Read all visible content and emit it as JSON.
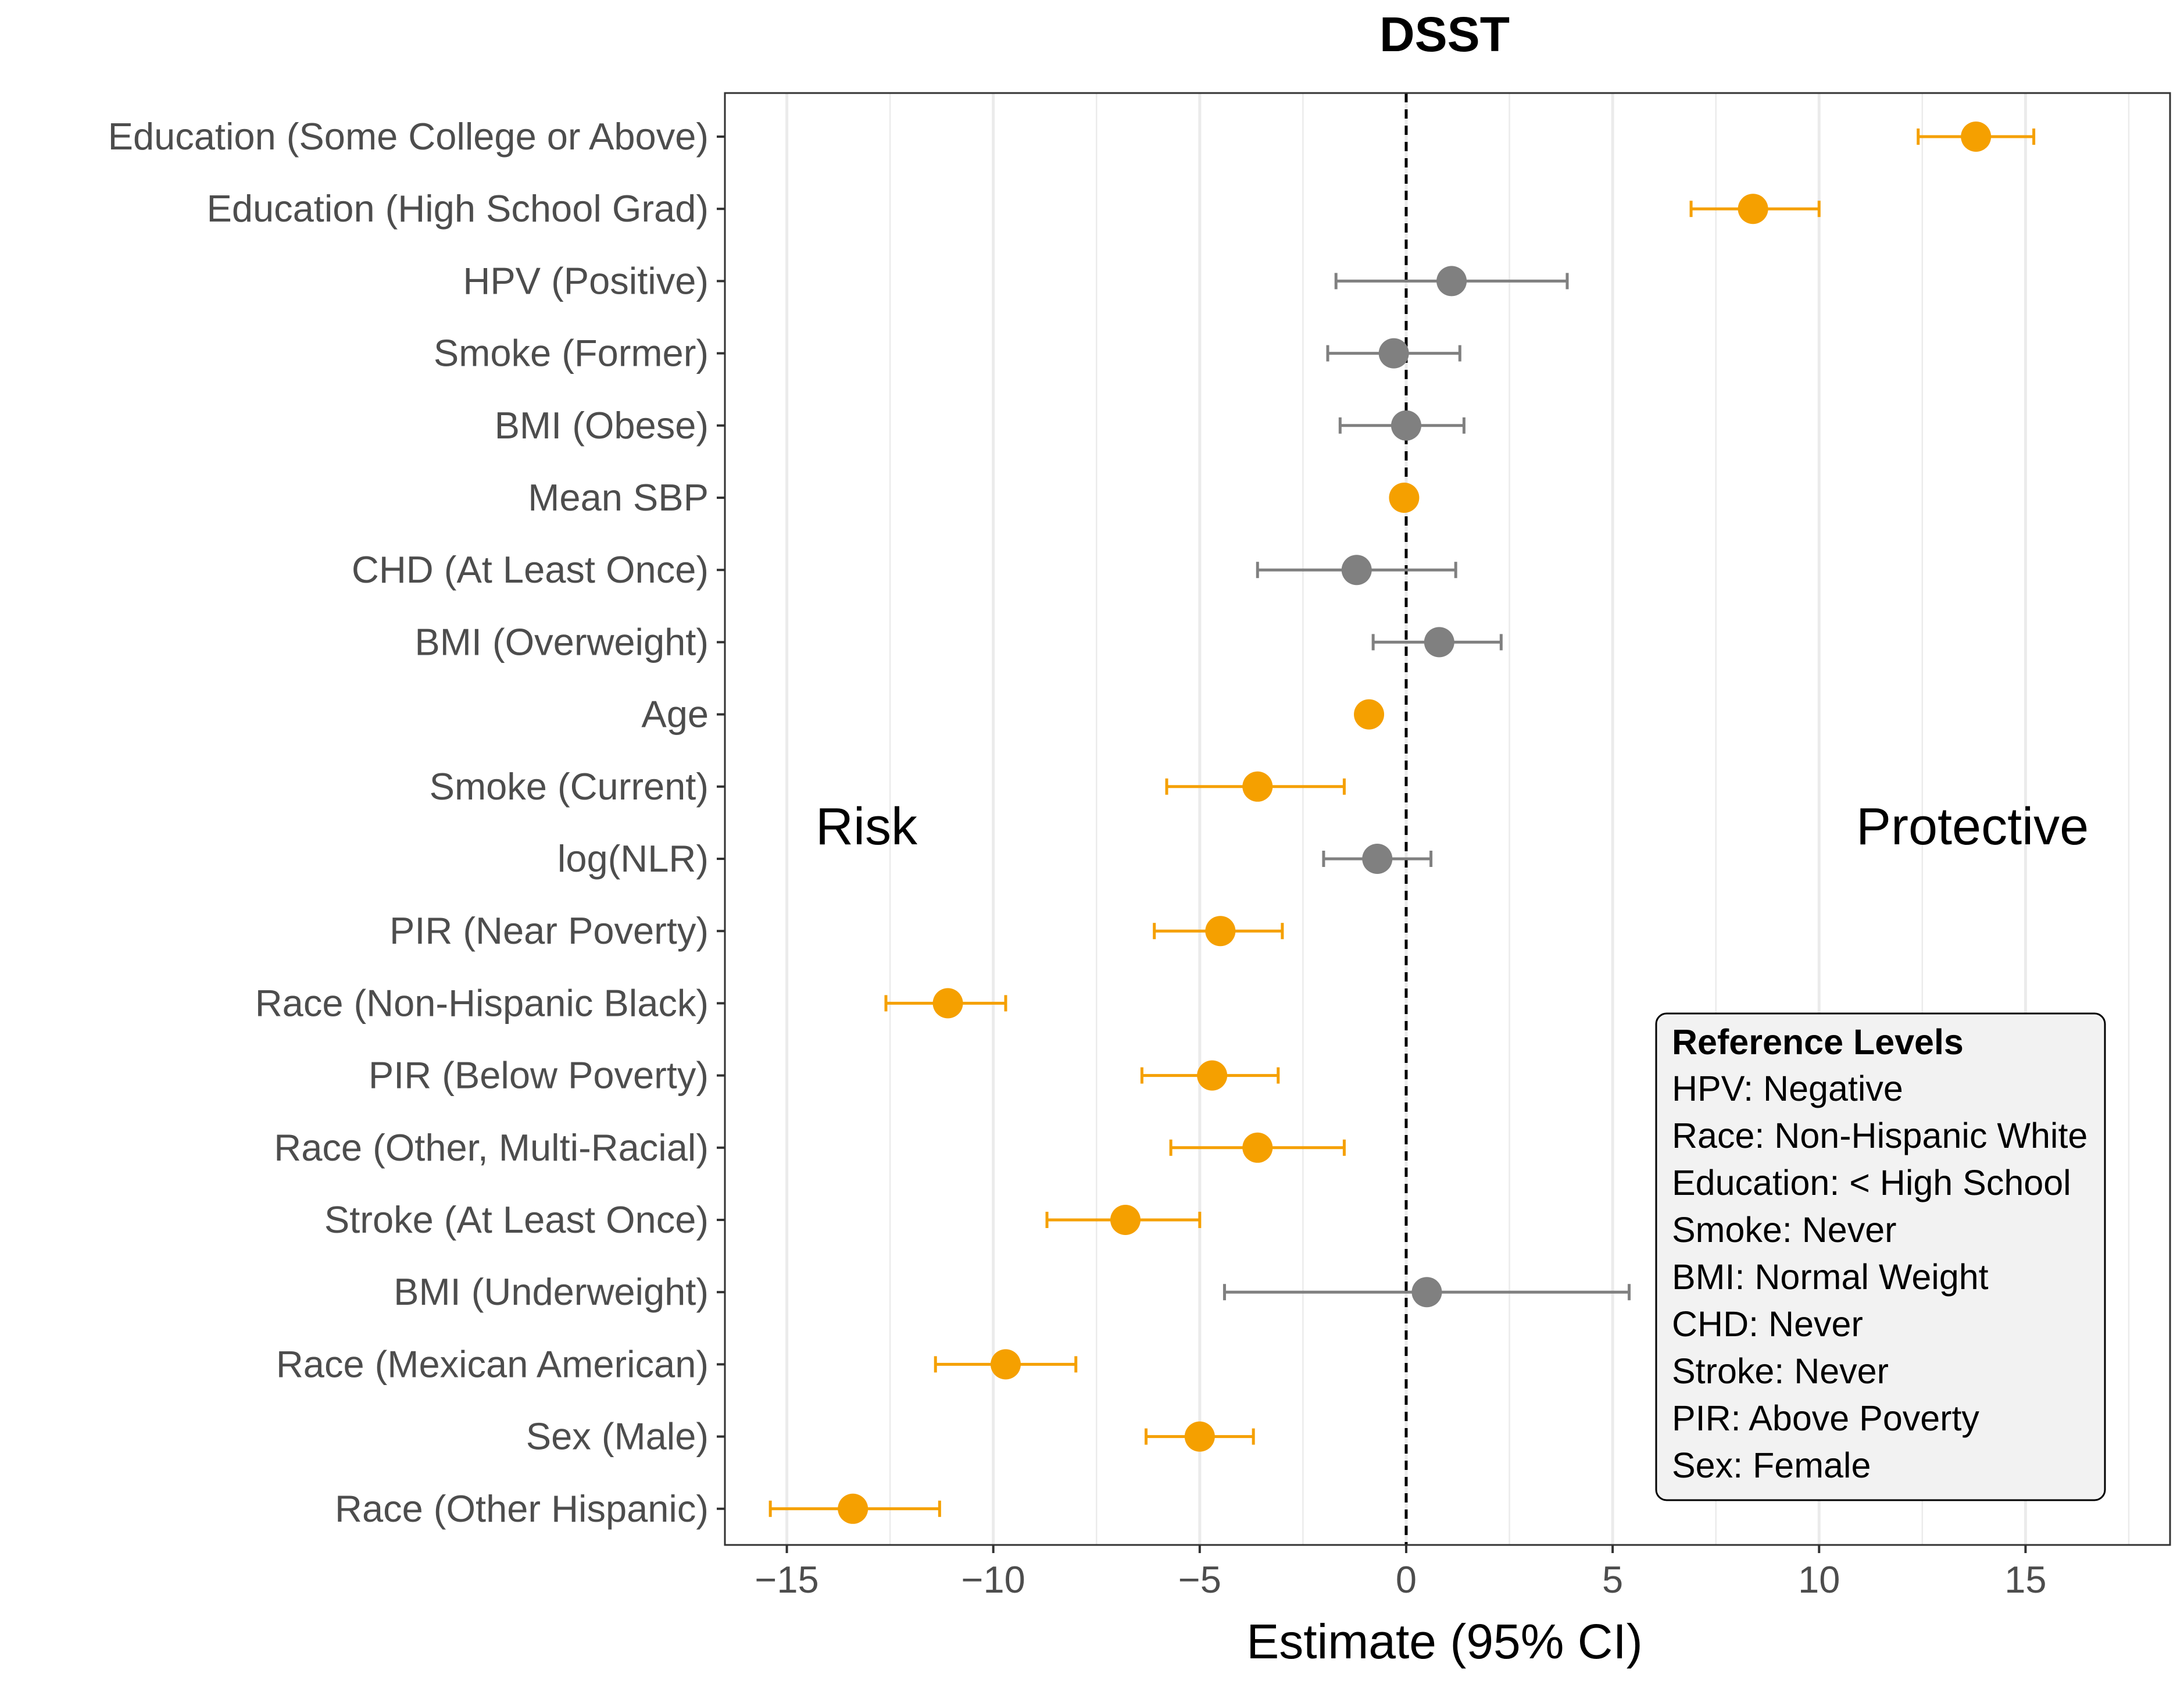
{
  "chart_data": {
    "type": "forest",
    "title": "DSST",
    "xlabel": "Estimate (95% CI)",
    "ylabel": "",
    "xlim": [
      -16.5,
      18.5
    ],
    "xticks": [
      -15,
      -10,
      -5,
      0,
      5,
      10,
      15
    ],
    "xtick_labels": [
      "−15",
      "−10",
      "−5",
      "0",
      "5",
      "10",
      "15"
    ],
    "reference_line": 0,
    "grid": "vertical",
    "colors": {
      "significant": "#F5A000",
      "nonsignificant": "#808080"
    },
    "rows": [
      {
        "label": "Education (Some College or Above)",
        "estimate": 13.8,
        "lower": 12.4,
        "upper": 15.2,
        "significant": true
      },
      {
        "label": "Education (High School Grad)",
        "estimate": 8.4,
        "lower": 6.9,
        "upper": 10.0,
        "significant": true
      },
      {
        "label": "HPV (Positive)",
        "estimate": 1.1,
        "lower": -1.7,
        "upper": 3.9,
        "significant": false
      },
      {
        "label": "Smoke (Former)",
        "estimate": -0.3,
        "lower": -1.9,
        "upper": 1.3,
        "significant": false
      },
      {
        "label": "BMI (Obese)",
        "estimate": 0.0,
        "lower": -1.6,
        "upper": 1.4,
        "significant": false
      },
      {
        "label": "Mean SBP",
        "estimate": -0.05,
        "lower": -0.1,
        "upper": 0.0,
        "significant": true
      },
      {
        "label": "CHD (At Least Once)",
        "estimate": -1.2,
        "lower": -3.6,
        "upper": 1.2,
        "significant": false
      },
      {
        "label": "BMI (Overweight)",
        "estimate": 0.8,
        "lower": -0.8,
        "upper": 2.3,
        "significant": false
      },
      {
        "label": "Age",
        "estimate": -0.9,
        "lower": -1.0,
        "upper": -0.8,
        "significant": true
      },
      {
        "label": "Smoke (Current)",
        "estimate": -3.6,
        "lower": -5.8,
        "upper": -1.5,
        "significant": true
      },
      {
        "label": "log(NLR)",
        "estimate": -0.7,
        "lower": -2.0,
        "upper": 0.6,
        "significant": false
      },
      {
        "label": "PIR (Near Poverty)",
        "estimate": -4.5,
        "lower": -6.1,
        "upper": -3.0,
        "significant": true
      },
      {
        "label": "Race (Non-Hispanic Black)",
        "estimate": -11.1,
        "lower": -12.6,
        "upper": -9.7,
        "significant": true
      },
      {
        "label": "PIR (Below Poverty)",
        "estimate": -4.7,
        "lower": -6.4,
        "upper": -3.1,
        "significant": true
      },
      {
        "label": "Race (Other, Multi-Racial)",
        "estimate": -3.6,
        "lower": -5.7,
        "upper": -1.5,
        "significant": true
      },
      {
        "label": "Stroke (At Least Once)",
        "estimate": -6.8,
        "lower": -8.7,
        "upper": -5.0,
        "significant": true
      },
      {
        "label": "BMI (Underweight)",
        "estimate": 0.5,
        "lower": -4.4,
        "upper": 5.4,
        "significant": false
      },
      {
        "label": "Race (Mexican American)",
        "estimate": -9.7,
        "lower": -11.4,
        "upper": -8.0,
        "significant": true
      },
      {
        "label": "Sex (Male)",
        "estimate": -5.0,
        "lower": -6.3,
        "upper": -3.7,
        "significant": true
      },
      {
        "label": "Race (Other Hispanic)",
        "estimate": -13.4,
        "lower": -15.4,
        "upper": -11.3,
        "significant": true
      }
    ],
    "annotations": {
      "left": "Risk",
      "right": "Protective"
    },
    "legend": {
      "title": "Reference Levels",
      "position": "bottom-right",
      "items": [
        "HPV: Negative",
        "Race: Non-Hispanic White",
        "Education: < High School",
        "Smoke: Never",
        "BMI: Normal Weight",
        "CHD: Never",
        "Stroke: Never",
        "PIR: Above Poverty",
        "Sex: Female"
      ]
    }
  }
}
